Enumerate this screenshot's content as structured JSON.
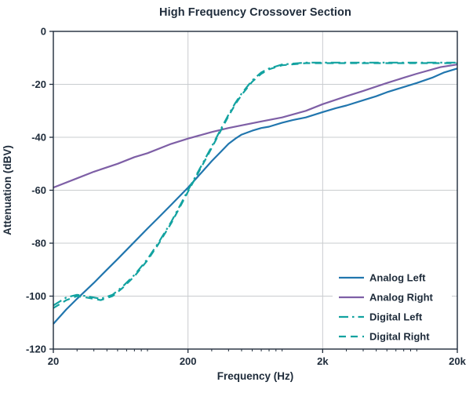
{
  "chart_data": {
    "type": "line",
    "title": "High Frequency Crossover Section",
    "xlabel": "Frequency (Hz)",
    "ylabel": "Attenuation (dBV)",
    "x_scale": "log",
    "xlim": [
      20,
      20000
    ],
    "ylim": [
      -120,
      0
    ],
    "grid": true,
    "legend_position": "lower right",
    "x_ticks": [
      {
        "value": 20,
        "label": "20"
      },
      {
        "value": 200,
        "label": "200"
      },
      {
        "value": 2000,
        "label": "2k"
      },
      {
        "value": 20000,
        "label": "20k"
      }
    ],
    "y_ticks": [
      {
        "value": 0,
        "label": "0"
      },
      {
        "value": -20,
        "label": "-20"
      },
      {
        "value": -40,
        "label": "-40"
      },
      {
        "value": -60,
        "label": "-60"
      },
      {
        "value": -80,
        "label": "-80"
      },
      {
        "value": -100,
        "label": "-100"
      },
      {
        "value": -120,
        "label": "-120"
      }
    ],
    "colors": {
      "axis": "#1e2b3a",
      "grid": "#c9cccf",
      "background": "#ffffff"
    },
    "series": [
      {
        "name": "Analog Left",
        "color": "#2176ae",
        "style": "solid",
        "points": [
          [
            20,
            -110.5
          ],
          [
            25,
            -105
          ],
          [
            30,
            -101
          ],
          [
            40,
            -95
          ],
          [
            50,
            -90
          ],
          [
            60,
            -86
          ],
          [
            80,
            -79.5
          ],
          [
            100,
            -74.5
          ],
          [
            120,
            -70.5
          ],
          [
            150,
            -65.5
          ],
          [
            200,
            -59
          ],
          [
            250,
            -53.5
          ],
          [
            300,
            -49
          ],
          [
            350,
            -45.5
          ],
          [
            400,
            -42.5
          ],
          [
            450,
            -40.5
          ],
          [
            500,
            -39
          ],
          [
            600,
            -37.5
          ],
          [
            700,
            -36.5
          ],
          [
            800,
            -36
          ],
          [
            1000,
            -34.5
          ],
          [
            1200,
            -33.5
          ],
          [
            1500,
            -32.5
          ],
          [
            2000,
            -30.5
          ],
          [
            2500,
            -29
          ],
          [
            3000,
            -28
          ],
          [
            4000,
            -26
          ],
          [
            5000,
            -24.5
          ],
          [
            6000,
            -23
          ],
          [
            8000,
            -21
          ],
          [
            10000,
            -19.5
          ],
          [
            13000,
            -17.5
          ],
          [
            16000,
            -15.5
          ],
          [
            20000,
            -14
          ]
        ]
      },
      {
        "name": "Analog Right",
        "color": "#7e5fa6",
        "style": "solid",
        "points": [
          [
            20,
            -59
          ],
          [
            30,
            -55.5
          ],
          [
            40,
            -53
          ],
          [
            60,
            -50
          ],
          [
            80,
            -47.5
          ],
          [
            100,
            -46
          ],
          [
            150,
            -42.5
          ],
          [
            200,
            -40.5
          ],
          [
            300,
            -38
          ],
          [
            400,
            -36.5
          ],
          [
            500,
            -35.5
          ],
          [
            700,
            -34
          ],
          [
            1000,
            -32.5
          ],
          [
            1500,
            -30
          ],
          [
            2000,
            -27.5
          ],
          [
            3000,
            -24.5
          ],
          [
            4000,
            -22.5
          ],
          [
            6000,
            -19.5
          ],
          [
            8000,
            -17.5
          ],
          [
            10000,
            -16
          ],
          [
            15000,
            -13.5
          ],
          [
            20000,
            -12.5
          ]
        ]
      },
      {
        "name": "Digital Left",
        "color": "#12a2a0",
        "style": "dashdot",
        "points": [
          [
            20,
            -103.5
          ],
          [
            25,
            -100.5
          ],
          [
            30,
            -99.5
          ],
          [
            35,
            -100
          ],
          [
            45,
            -101
          ],
          [
            55,
            -99.5
          ],
          [
            65,
            -96.5
          ],
          [
            80,
            -92
          ],
          [
            100,
            -86
          ],
          [
            120,
            -80
          ],
          [
            150,
            -72
          ],
          [
            180,
            -64.5
          ],
          [
            200,
            -60
          ],
          [
            250,
            -51
          ],
          [
            300,
            -43.5
          ],
          [
            350,
            -37
          ],
          [
            400,
            -31.5
          ],
          [
            450,
            -27
          ],
          [
            500,
            -23.5
          ],
          [
            600,
            -18.5
          ],
          [
            700,
            -15.5
          ],
          [
            800,
            -14
          ],
          [
            1000,
            -12.5
          ],
          [
            1500,
            -11.8
          ],
          [
            2000,
            -11.8
          ],
          [
            5000,
            -11.8
          ],
          [
            10000,
            -11.8
          ],
          [
            20000,
            -11.8
          ]
        ]
      },
      {
        "name": "Digital Right",
        "color": "#12a2a0",
        "style": "dashed",
        "points": [
          [
            20,
            -104.5
          ],
          [
            25,
            -101.5
          ],
          [
            30,
            -100
          ],
          [
            35,
            -100.5
          ],
          [
            45,
            -101.5
          ],
          [
            55,
            -100
          ],
          [
            65,
            -97
          ],
          [
            80,
            -92.5
          ],
          [
            100,
            -86.5
          ],
          [
            120,
            -80.5
          ],
          [
            150,
            -72.5
          ],
          [
            180,
            -65
          ],
          [
            200,
            -60.5
          ],
          [
            250,
            -51.5
          ],
          [
            300,
            -44
          ],
          [
            350,
            -37.5
          ],
          [
            400,
            -32
          ],
          [
            450,
            -27.5
          ],
          [
            500,
            -24
          ],
          [
            600,
            -19
          ],
          [
            700,
            -16
          ],
          [
            800,
            -14.3
          ],
          [
            1000,
            -12.8
          ],
          [
            1500,
            -12
          ],
          [
            2000,
            -12
          ],
          [
            5000,
            -12
          ],
          [
            10000,
            -12
          ],
          [
            20000,
            -12
          ]
        ]
      }
    ]
  }
}
